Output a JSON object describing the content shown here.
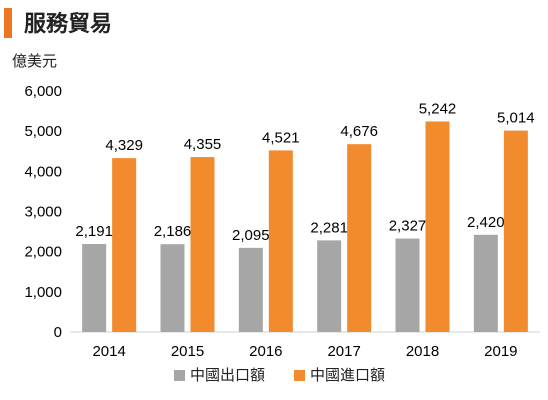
{
  "header": {
    "title": "服務貿易"
  },
  "chart_data": {
    "type": "bar",
    "title": "服務貿易",
    "ylabel": "億美元",
    "xlabel": "",
    "categories": [
      "2014",
      "2015",
      "2016",
      "2017",
      "2018",
      "2019"
    ],
    "series": [
      {
        "name": "中國出口額",
        "color": "#a6a6a6",
        "values": [
          2191,
          2186,
          2095,
          2281,
          2327,
          2420
        ],
        "labels": [
          "2,191",
          "2,186",
          "2,095",
          "2,281",
          "2,327",
          "2,420"
        ]
      },
      {
        "name": "中國進口額",
        "color": "#f28a2e",
        "values": [
          4329,
          4355,
          4521,
          4676,
          5242,
          5014
        ],
        "labels": [
          "4,329",
          "4,355",
          "4,521",
          "4,676",
          "5,242",
          "5,014"
        ]
      }
    ],
    "ylim": [
      0,
      6000
    ],
    "yticks": [
      0,
      1000,
      2000,
      3000,
      4000,
      5000,
      6000
    ],
    "ytick_labels": [
      "0",
      "1,000",
      "2,000",
      "3,000",
      "4,000",
      "5,000",
      "6,000"
    ],
    "grid": false,
    "legend": "bottom"
  }
}
